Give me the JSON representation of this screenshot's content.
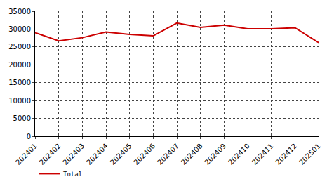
{
  "chart_data": {
    "type": "line",
    "categories": [
      "202401",
      "202402",
      "202403",
      "202404",
      "202405",
      "202406",
      "202407",
      "202408",
      "202409",
      "202410",
      "202411",
      "202412",
      "202501"
    ],
    "series": [
      {
        "name": "Total",
        "color": "#cc0000",
        "values": [
          29000,
          26700,
          27600,
          29200,
          28500,
          28100,
          31700,
          30500,
          31100,
          30100,
          30100,
          30400,
          26200
        ]
      }
    ],
    "ylim": [
      0,
      35000
    ],
    "yticks": [
      0,
      5000,
      10000,
      15000,
      20000,
      25000,
      30000,
      35000
    ],
    "grid": true,
    "legend": "bottom left"
  }
}
